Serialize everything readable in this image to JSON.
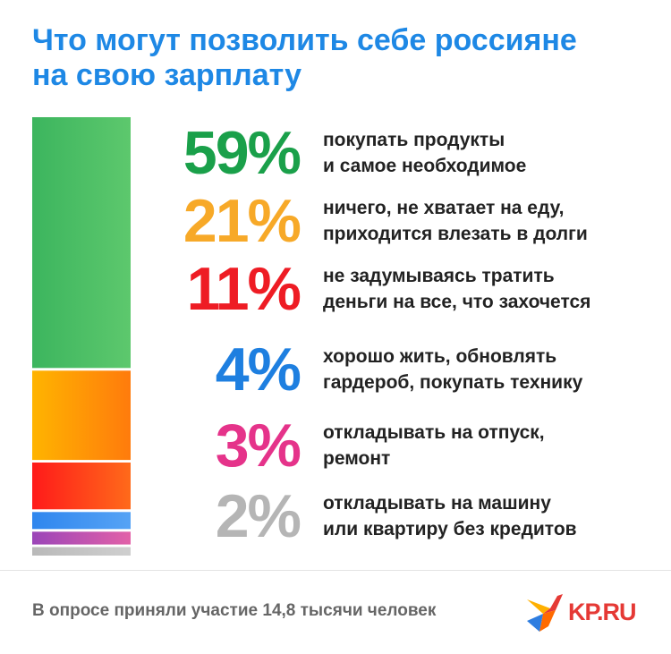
{
  "title": {
    "line1": "Что могут позволить себе россияне",
    "line2": "на свою зарплату"
  },
  "chart_data": {
    "type": "bar",
    "stacked": true,
    "unit": "%",
    "categories": [
      "покупать продукты и самое необходимое",
      "ничего, не хватает на еду, приходится влезать в долги",
      "не задумываясь тратить деньги на все, что захочется",
      "хорошо жить, обновлять гардероб, покупать технику",
      "откладывать на отпуск, ремонт",
      "откладывать на машину или квартиру без кредитов"
    ],
    "values": [
      59,
      21,
      11,
      4,
      3,
      2
    ],
    "value_labels": [
      "59%",
      "21%",
      "11%",
      "4%",
      "3%",
      "2%"
    ],
    "colors": [
      "#1aa04a",
      "#f7a928",
      "#ee1c24",
      "#1e7fe0",
      "#e5338a",
      "#b5b5b5"
    ],
    "segment_colors": [
      [
        "#3cb55e",
        "#5dc86d"
      ],
      [
        "#ffb400",
        "#ff7b0c"
      ],
      [
        "#ff1a1a",
        "#ff6a1a"
      ],
      [
        "#2f86ee",
        "#56a3f5"
      ],
      [
        "#9b45b8",
        "#e261a8"
      ],
      [
        "#b9b9b9",
        "#cfcfcf"
      ]
    ],
    "desc_lines": [
      [
        "покупать продукты",
        "и самое необходимое"
      ],
      [
        "ничего, не хватает на еду,",
        "приходится влезать в долги"
      ],
      [
        "не задумываясь тратить",
        "деньги на все, что захочется"
      ],
      [
        "хорошо жить, обновлять",
        "гардероб, покупать технику"
      ],
      [
        "откладывать на отпуск,",
        "ремонт"
      ],
      [
        "откладывать на машину",
        "или квартиру без кредитов"
      ]
    ]
  },
  "footer": {
    "note": "В опросе приняли участие 14,8 тысячи человек",
    "brand": "KP.RU"
  }
}
